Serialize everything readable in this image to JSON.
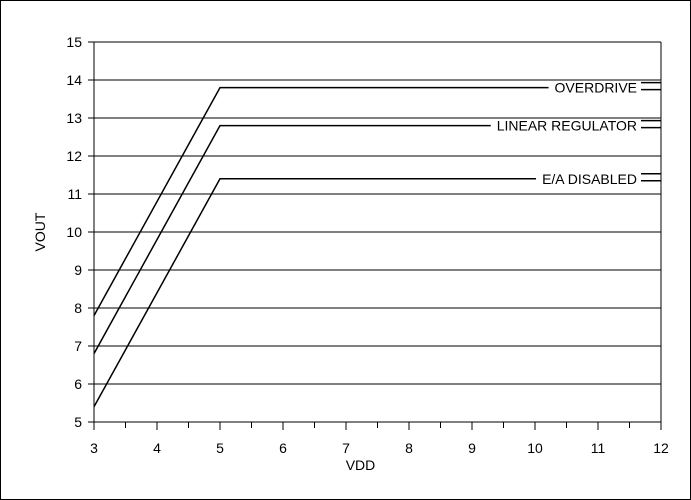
{
  "chart_data": {
    "type": "line",
    "title": "",
    "xlabel": "VDD",
    "ylabel": "VOUT",
    "xlim": [
      3,
      12
    ],
    "ylim": [
      5,
      15
    ],
    "xticks": [
      "3",
      "4",
      "5",
      "6",
      "7",
      "8",
      "9",
      "10",
      "11",
      "12"
    ],
    "yticks": [
      "5",
      "6",
      "7",
      "8",
      "9",
      "10",
      "11",
      "12",
      "13",
      "14",
      "15"
    ],
    "grid": "horizontal",
    "series": [
      {
        "name": "OVERDRIVE",
        "x": [
          3,
          5,
          12
        ],
        "y": [
          7.8,
          13.8,
          13.8
        ]
      },
      {
        "name": "LINEAR REGULATOR",
        "x": [
          3,
          5,
          12
        ],
        "y": [
          6.8,
          12.8,
          12.8
        ]
      },
      {
        "name": "E/A DISABLED",
        "x": [
          3,
          5,
          12
        ],
        "y": [
          5.4,
          11.4,
          11.4
        ]
      }
    ],
    "colors": {
      "line": "#000000",
      "grid": "#000000",
      "background": "#ffffff"
    }
  }
}
